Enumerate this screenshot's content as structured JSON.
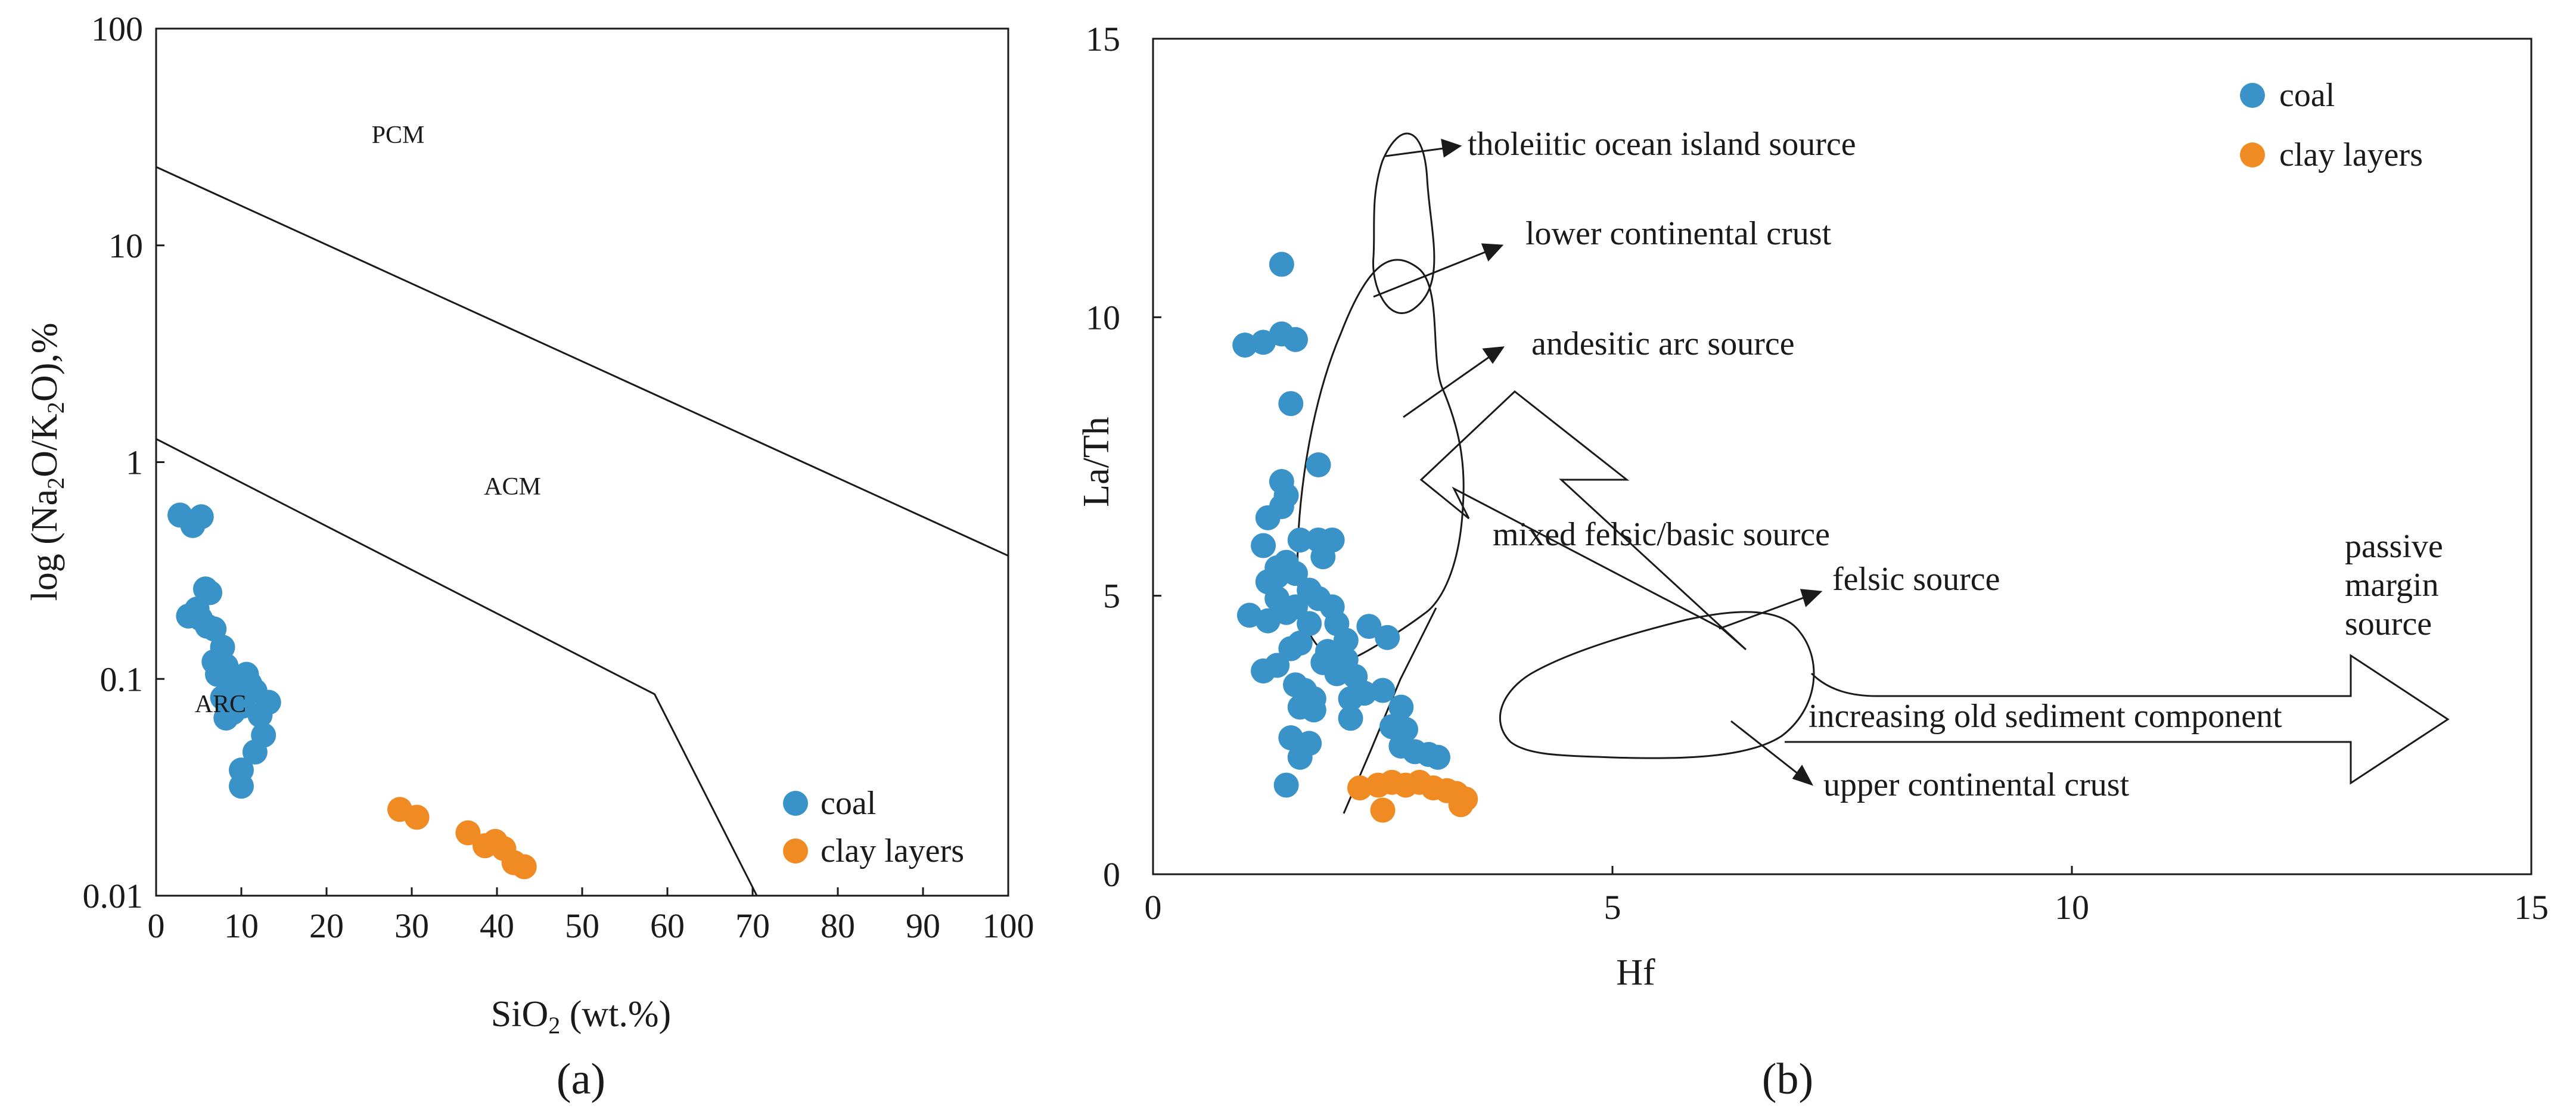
{
  "panel_a_label": "(a)",
  "panel_b_label": "(b)",
  "chart_data": [
    {
      "type": "scatter",
      "panel": "a",
      "xlabel": "SiO2 (wt.%)",
      "ylabel": "log (Na2O/K2O),%",
      "xlim": [
        0,
        100
      ],
      "ylim": [
        0.01,
        100
      ],
      "yscale": "log",
      "x_ticks": [
        "0",
        "10",
        "20",
        "30",
        "40",
        "50",
        "60",
        "70",
        "80",
        "90",
        "100"
      ],
      "y_ticks": [
        "0.01",
        "0.1",
        "1",
        "10",
        "100"
      ],
      "grid": false,
      "legend_position": "bottom-right",
      "regions": [
        "PCM",
        "ACM",
        "ARC"
      ],
      "boundaries": [
        {
          "name": "PCM-ACM",
          "points": [
            [
              0,
              23
            ],
            [
              100,
              0.37
            ]
          ]
        },
        {
          "name": "ACM-ARC",
          "points": [
            [
              0,
              1.28
            ],
            [
              58.5,
              0.085
            ],
            [
              70.5,
              0.01
            ]
          ]
        }
      ],
      "series": [
        {
          "name": "coal",
          "color": "#3a93c8",
          "points": [
            [
              2.8,
              0.57
            ],
            [
              4.3,
              0.51
            ],
            [
              5.3,
              0.56
            ],
            [
              3.8,
              0.195
            ],
            [
              4.8,
              0.21
            ],
            [
              5.2,
              0.19
            ],
            [
              5.8,
              0.26
            ],
            [
              6.3,
              0.25
            ],
            [
              6.0,
              0.175
            ],
            [
              6.8,
              0.17
            ],
            [
              7.8,
              0.14
            ],
            [
              6.8,
              0.12
            ],
            [
              7.2,
              0.105
            ],
            [
              8.2,
              0.115
            ],
            [
              8.6,
              0.1
            ],
            [
              9.6,
              0.1
            ],
            [
              10.6,
              0.105
            ],
            [
              11.0,
              0.095
            ],
            [
              11.6,
              0.088
            ],
            [
              7.8,
              0.082
            ],
            [
              9.2,
              0.09
            ],
            [
              8.2,
              0.066
            ],
            [
              9.0,
              0.07
            ],
            [
              10.2,
              0.075
            ],
            [
              12.2,
              0.068
            ],
            [
              13.2,
              0.078
            ],
            [
              12.6,
              0.055
            ],
            [
              11.6,
              0.046
            ],
            [
              10.0,
              0.038
            ],
            [
              10.0,
              0.032
            ]
          ]
        },
        {
          "name": "clay layers",
          "color": "#f08a22",
          "points": [
            [
              28.6,
              0.025
            ],
            [
              30.6,
              0.023
            ],
            [
              36.6,
              0.0195
            ],
            [
              38.6,
              0.017
            ],
            [
              39.8,
              0.0178
            ],
            [
              40.8,
              0.0165
            ],
            [
              42.0,
              0.0142
            ],
            [
              43.2,
              0.0136
            ]
          ]
        }
      ]
    },
    {
      "type": "scatter",
      "panel": "b",
      "xlabel": "Hf",
      "ylabel": "La/Th",
      "xlim": [
        0,
        15
      ],
      "ylim": [
        0,
        15
      ],
      "x_ticks": [
        "0",
        "5",
        "10",
        "15"
      ],
      "y_ticks": [
        "0",
        "5",
        "10",
        "15"
      ],
      "grid": false,
      "legend_position": "top-right",
      "annotations": [
        "tholeiitic ocean island source",
        "lower continental crust",
        "andesitic arc source",
        "mixed felsic/basic source",
        "felsic source",
        "passive",
        "margin",
        "source",
        "increasing old sediment component",
        "upper continental crust"
      ],
      "series": [
        {
          "name": "coal",
          "color": "#3a93c8",
          "points": [
            [
              1.0,
              9.5
            ],
            [
              1.2,
              9.55
            ],
            [
              1.4,
              9.7
            ],
            [
              1.55,
              9.6
            ],
            [
              1.4,
              10.95
            ],
            [
              1.5,
              8.45
            ],
            [
              1.4,
              7.05
            ],
            [
              1.45,
              6.8
            ],
            [
              1.4,
              6.6
            ],
            [
              1.8,
              7.35
            ],
            [
              1.25,
              6.4
            ],
            [
              1.2,
              5.9
            ],
            [
              1.35,
              5.35
            ],
            [
              1.6,
              6.0
            ],
            [
              1.8,
              6.0
            ],
            [
              1.95,
              6.0
            ],
            [
              1.85,
              5.7
            ],
            [
              1.25,
              5.25
            ],
            [
              1.35,
              5.5
            ],
            [
              1.45,
              5.6
            ],
            [
              1.55,
              5.4
            ],
            [
              1.7,
              5.1
            ],
            [
              1.8,
              4.95
            ],
            [
              1.95,
              4.8
            ],
            [
              1.05,
              4.65
            ],
            [
              1.25,
              4.55
            ],
            [
              1.45,
              4.7
            ],
            [
              1.35,
              4.95
            ],
            [
              1.55,
              4.8
            ],
            [
              1.7,
              4.5
            ],
            [
              2.0,
              4.5
            ],
            [
              2.35,
              4.45
            ],
            [
              2.1,
              4.2
            ],
            [
              2.55,
              4.25
            ],
            [
              1.5,
              4.05
            ],
            [
              1.6,
              4.15
            ],
            [
              1.9,
              4.0
            ],
            [
              2.1,
              3.85
            ],
            [
              1.85,
              3.8
            ],
            [
              2.0,
              3.6
            ],
            [
              2.2,
              3.55
            ],
            [
              1.2,
              3.65
            ],
            [
              1.35,
              3.75
            ],
            [
              1.55,
              3.4
            ],
            [
              1.65,
              3.3
            ],
            [
              1.75,
              3.15
            ],
            [
              2.15,
              3.15
            ],
            [
              2.3,
              3.25
            ],
            [
              2.5,
              3.3
            ],
            [
              1.6,
              3.0
            ],
            [
              1.75,
              2.95
            ],
            [
              2.15,
              2.8
            ],
            [
              2.7,
              3.0
            ],
            [
              2.6,
              2.65
            ],
            [
              2.75,
              2.6
            ],
            [
              2.7,
              2.3
            ],
            [
              2.85,
              2.2
            ],
            [
              3.0,
              2.15
            ],
            [
              3.1,
              2.1
            ],
            [
              1.5,
              2.45
            ],
            [
              1.7,
              2.35
            ],
            [
              1.6,
              2.1
            ],
            [
              1.45,
              1.6
            ]
          ]
        },
        {
          "name": "clay layers",
          "color": "#f08a22",
          "points": [
            [
              2.25,
              1.55
            ],
            [
              2.45,
              1.6
            ],
            [
              2.6,
              1.65
            ],
            [
              2.75,
              1.6
            ],
            [
              2.9,
              1.65
            ],
            [
              3.05,
              1.55
            ],
            [
              3.2,
              1.5
            ],
            [
              3.3,
              1.45
            ],
            [
              3.4,
              1.35
            ],
            [
              3.35,
              1.25
            ],
            [
              2.5,
              1.15
            ]
          ]
        }
      ]
    }
  ]
}
